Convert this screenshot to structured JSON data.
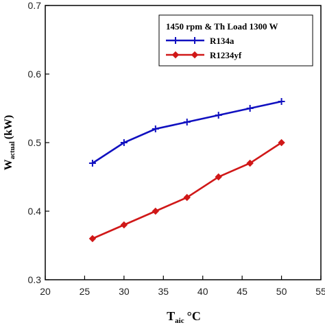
{
  "chart_data": {
    "type": "line",
    "title": "",
    "legend_title": "1450 rpm & Th Load 1300 W",
    "legend_position": "top-right",
    "xlabel": {
      "main": "T",
      "sub": "aic",
      "unit": "°C"
    },
    "ylabel": {
      "main": "W",
      "sub": "actual",
      "unit": "(kW)"
    },
    "xlim": [
      20,
      55
    ],
    "ylim": [
      0.3,
      0.7
    ],
    "xticks": [
      "20",
      "25",
      "30",
      "35",
      "40",
      "45",
      "50",
      "55"
    ],
    "yticks": [
      "0.3",
      "0.4",
      "0.5",
      "0.6",
      "0.7"
    ],
    "grid": false,
    "series": [
      {
        "name": "R134a",
        "color": "#1010c0",
        "marker": "plus",
        "x": [
          26,
          30,
          34,
          38,
          42,
          46,
          50
        ],
        "y": [
          0.47,
          0.5,
          0.52,
          0.53,
          0.54,
          0.55,
          0.56
        ]
      },
      {
        "name": "R1234yf",
        "color": "#d01818",
        "marker": "diamond",
        "x": [
          26,
          30,
          34,
          38,
          42,
          46,
          50
        ],
        "y": [
          0.36,
          0.38,
          0.4,
          0.42,
          0.45,
          0.47,
          0.5
        ]
      }
    ]
  }
}
